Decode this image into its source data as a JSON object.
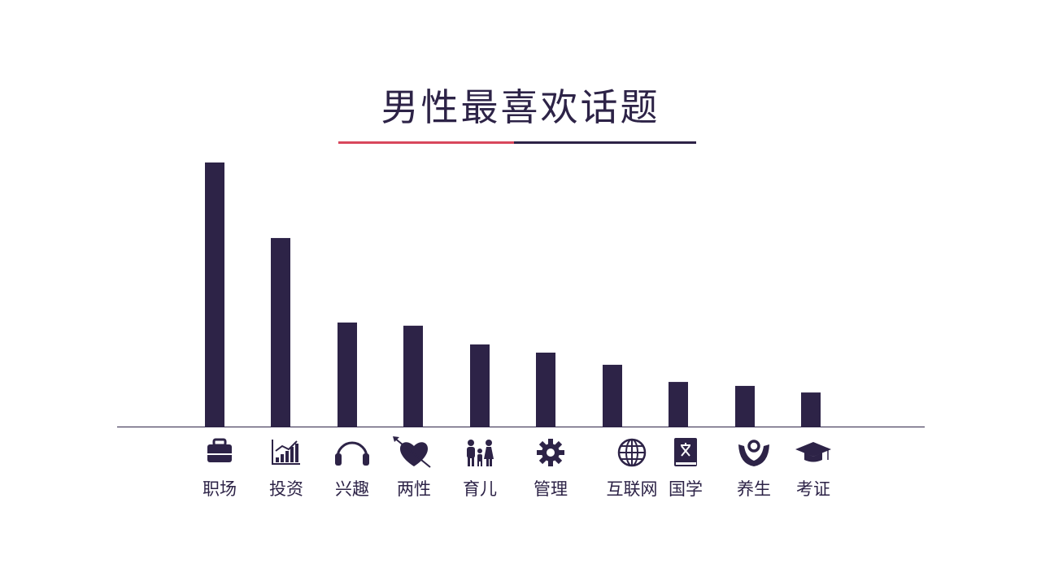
{
  "title": "男性最喜欢话题",
  "colors": {
    "bar": "#2d2347",
    "accent": "#d8475c",
    "axis": "#2d2347",
    "icon": "#2d2347"
  },
  "chart_data": {
    "type": "bar",
    "title": "男性最喜欢话题",
    "xlabel": "",
    "ylabel": "",
    "grid": false,
    "legend": "none",
    "categories": [
      "职场",
      "投资",
      "兴趣",
      "两性",
      "育儿",
      "管理",
      "互联网",
      "国学",
      "养生",
      "考证"
    ],
    "icons": [
      "briefcase-icon",
      "chart-icon",
      "headphones-icon",
      "heart-arrow-icon",
      "family-icon",
      "gear-icon",
      "globe-icon",
      "book-icon",
      "hands-person-icon",
      "graduation-cap-icon"
    ],
    "values": [
      100,
      71.4,
      39.4,
      38.2,
      31.1,
      28,
      23.4,
      16.9,
      15.4,
      12.9
    ],
    "ylim": [
      0,
      100
    ]
  }
}
